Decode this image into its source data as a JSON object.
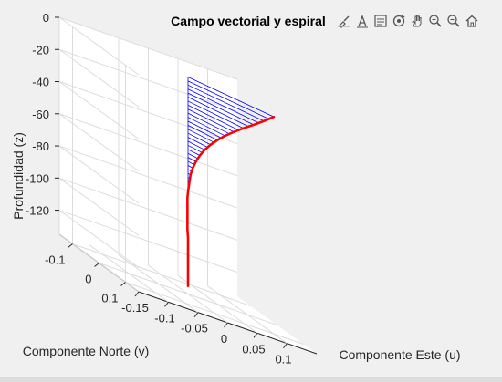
{
  "figure": {
    "background": "#f0f0f0",
    "toolbar": [
      {
        "name": "brush-icon",
        "label": "Brush"
      },
      {
        "name": "datatip-icon",
        "label": "Data tips"
      },
      {
        "name": "legend-icon",
        "label": "Legend"
      },
      {
        "name": "rotate-3d-icon",
        "label": "Rotate 3D"
      },
      {
        "name": "pan-hand-icon",
        "label": "Pan"
      },
      {
        "name": "zoom-in-icon",
        "label": "Zoom in"
      },
      {
        "name": "zoom-out-icon",
        "label": "Zoom out"
      },
      {
        "name": "home-icon",
        "label": "Restore view"
      }
    ]
  },
  "chart_data": {
    "type": "3d-line-quiver",
    "title": "Campo vectorial y espiral",
    "xlabel": "Componente Este (u)",
    "ylabel": "Componente Norte (v)",
    "zlabel": "Profundidad (z)",
    "xlim": [
      -0.15,
      0.15
    ],
    "ylim": [
      -0.15,
      0.15
    ],
    "zlim": [
      -135,
      0
    ],
    "xticks": [
      -0.15,
      -0.1,
      -0.05,
      0,
      0.05,
      0.1
    ],
    "xticklabels": [
      "-0.15",
      "-0.1",
      "-0.05",
      "0",
      "0.05",
      "0.1"
    ],
    "yticks": [
      0.1,
      0,
      -0.1
    ],
    "yticklabels": [
      "0.1",
      "0",
      "-0.1"
    ],
    "zticks": [
      0,
      -20,
      -40,
      -60,
      -80,
      -100,
      -120
    ],
    "zticklabels": [
      "0",
      "-20",
      "-40",
      "-60",
      "-80",
      "-100",
      "-120"
    ],
    "grid": true,
    "spiral_color": "#ff0000",
    "vector_color": "#0000ff",
    "spiral": {
      "depth": [
        0,
        -5,
        -10,
        -15,
        -20,
        -25,
        -30,
        -35,
        -40,
        -45,
        -50,
        -55,
        -60,
        -65,
        -70,
        -75,
        -80,
        -85,
        -90,
        -95,
        -100,
        -105,
        -110,
        -115,
        -120,
        -125,
        -130
      ],
      "u": [
        0.1,
        0.085,
        0.071,
        0.058,
        0.047,
        0.037,
        0.029,
        0.022,
        0.016,
        0.011,
        0.007,
        0.004,
        0.002,
        0.001,
        0.0,
        -0.001,
        -0.001,
        -0.001,
        -0.001,
        -0.001,
        0.0,
        0.0,
        0.0,
        0.0,
        0.0,
        0.0,
        0.0
      ],
      "v": [
        0.1,
        0.096,
        0.089,
        0.079,
        0.068,
        0.057,
        0.046,
        0.036,
        0.027,
        0.02,
        0.014,
        0.009,
        0.005,
        0.003,
        0.001,
        0.0,
        0.0,
        0.0,
        0.0,
        0.0,
        0.0,
        0.0,
        0.0,
        0.0,
        0.0,
        0.0,
        0.0
      ]
    }
  }
}
